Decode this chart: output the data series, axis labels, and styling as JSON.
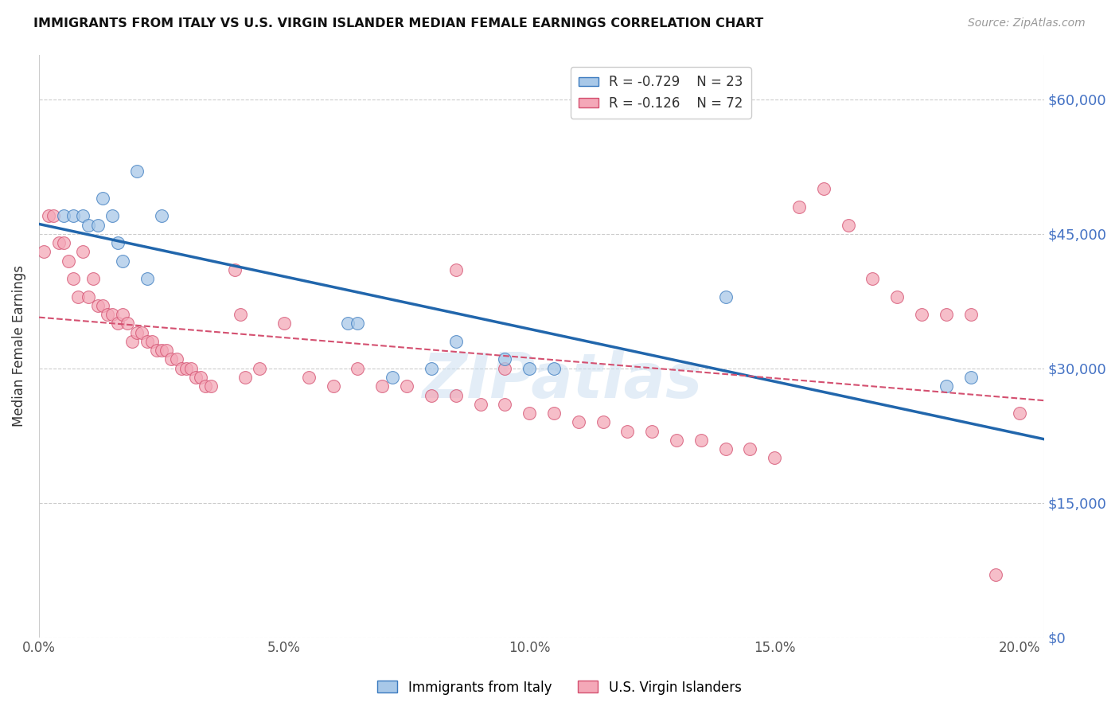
{
  "title": "IMMIGRANTS FROM ITALY VS U.S. VIRGIN ISLANDER MEDIAN FEMALE EARNINGS CORRELATION CHART",
  "source": "Source: ZipAtlas.com",
  "ylabel": "Median Female Earnings",
  "xlabel_ticks": [
    "0.0%",
    "5.0%",
    "10.0%",
    "15.0%",
    "20.0%"
  ],
  "xlabel_vals": [
    0.0,
    0.05,
    0.1,
    0.15,
    0.2
  ],
  "ylabel_ticks": [
    "$0",
    "$15,000",
    "$30,000",
    "$45,000",
    "$60,000"
  ],
  "ylabel_vals": [
    0,
    15000,
    30000,
    45000,
    60000
  ],
  "xlim": [
    0.0,
    0.205
  ],
  "ylim": [
    0,
    65000
  ],
  "blue_R": -0.729,
  "blue_N": 23,
  "pink_R": -0.126,
  "pink_N": 72,
  "blue_color": "#a8c8e8",
  "blue_edge_color": "#3a7abf",
  "blue_line_color": "#2166ac",
  "pink_color": "#f4a8b8",
  "pink_edge_color": "#d45070",
  "pink_line_color": "#d45070",
  "watermark": "ZIPatlas",
  "blue_scatter_x": [
    0.005,
    0.007,
    0.009,
    0.01,
    0.012,
    0.013,
    0.015,
    0.016,
    0.017,
    0.02,
    0.022,
    0.025,
    0.063,
    0.065,
    0.072,
    0.08,
    0.085,
    0.095,
    0.1,
    0.105,
    0.14,
    0.185,
    0.19
  ],
  "blue_scatter_y": [
    47000,
    47000,
    47000,
    46000,
    46000,
    49000,
    47000,
    44000,
    42000,
    52000,
    40000,
    47000,
    35000,
    35000,
    29000,
    30000,
    33000,
    31000,
    30000,
    30000,
    38000,
    28000,
    29000
  ],
  "pink_scatter_x": [
    0.001,
    0.002,
    0.003,
    0.004,
    0.005,
    0.006,
    0.007,
    0.008,
    0.009,
    0.01,
    0.011,
    0.012,
    0.013,
    0.014,
    0.015,
    0.016,
    0.017,
    0.018,
    0.019,
    0.02,
    0.021,
    0.022,
    0.023,
    0.024,
    0.025,
    0.026,
    0.027,
    0.028,
    0.029,
    0.03,
    0.031,
    0.032,
    0.033,
    0.034,
    0.035,
    0.04,
    0.041,
    0.042,
    0.045,
    0.05,
    0.055,
    0.06,
    0.065,
    0.07,
    0.075,
    0.08,
    0.085,
    0.09,
    0.095,
    0.1,
    0.105,
    0.11,
    0.115,
    0.12,
    0.125,
    0.13,
    0.135,
    0.14,
    0.145,
    0.15,
    0.155,
    0.16,
    0.165,
    0.17,
    0.175,
    0.18,
    0.185,
    0.19,
    0.195,
    0.2,
    0.085,
    0.095
  ],
  "pink_scatter_y": [
    43000,
    47000,
    47000,
    44000,
    44000,
    42000,
    40000,
    38000,
    43000,
    38000,
    40000,
    37000,
    37000,
    36000,
    36000,
    35000,
    36000,
    35000,
    33000,
    34000,
    34000,
    33000,
    33000,
    32000,
    32000,
    32000,
    31000,
    31000,
    30000,
    30000,
    30000,
    29000,
    29000,
    28000,
    28000,
    41000,
    36000,
    29000,
    30000,
    35000,
    29000,
    28000,
    30000,
    28000,
    28000,
    27000,
    27000,
    26000,
    26000,
    25000,
    25000,
    24000,
    24000,
    23000,
    23000,
    22000,
    22000,
    21000,
    21000,
    20000,
    48000,
    50000,
    46000,
    40000,
    38000,
    36000,
    36000,
    36000,
    7000,
    25000,
    41000,
    30000
  ]
}
